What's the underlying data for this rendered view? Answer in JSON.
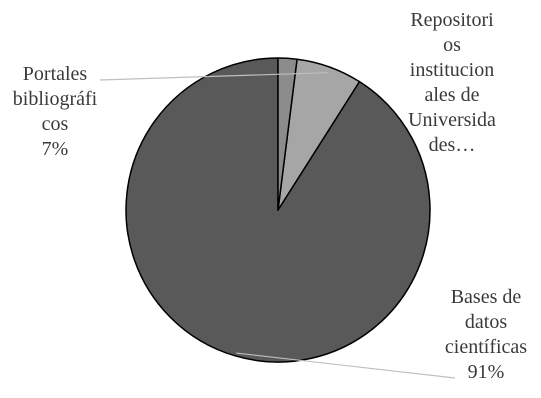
{
  "chart_data": {
    "type": "pie",
    "title": "",
    "slices": [
      {
        "label_lines": [
          "Bases de",
          "datos",
          "científicas",
          "91%"
        ],
        "value": 91,
        "color": "#595959"
      },
      {
        "label_lines": [
          "Portales",
          "bibliográfi",
          "cos",
          "7%"
        ],
        "value": 7,
        "color": "#a6a6a6"
      },
      {
        "label_lines": [
          "Repositori",
          "os",
          "institucion",
          "ales de",
          "Universida",
          "des…"
        ],
        "value": 2,
        "color": "#8c8c8c"
      }
    ],
    "start_angle_deg": 0,
    "direction": "counterclockwise",
    "slice_border_color": "#000000",
    "leader_line_color": "#bfbfbf"
  }
}
